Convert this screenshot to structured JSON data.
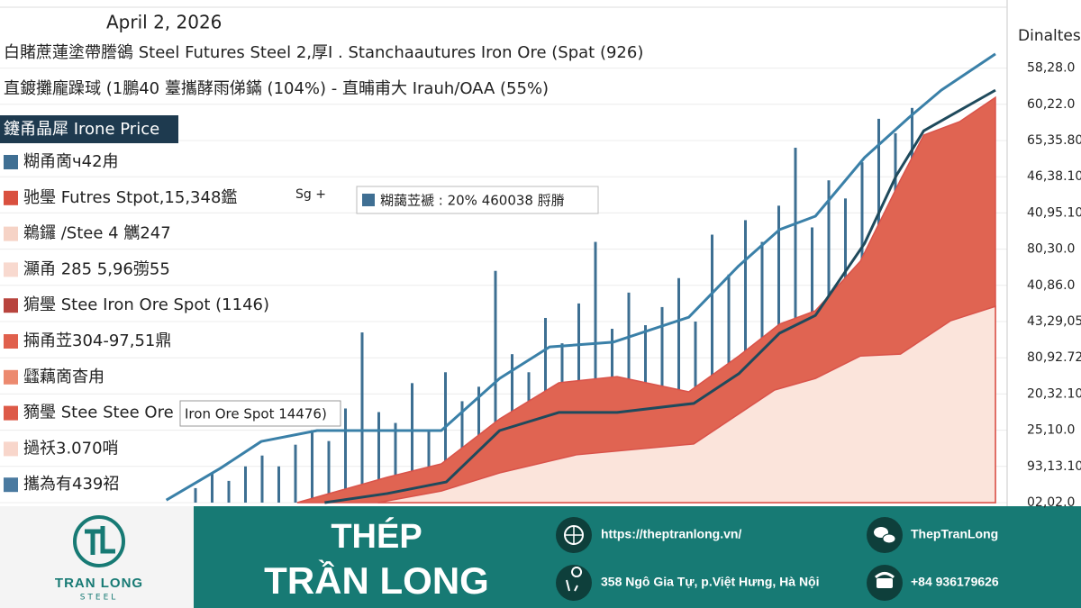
{
  "chart_data": {
    "type": "line",
    "date": "April 2, 2026",
    "title": "白賭蔗蓮塗帶謄鵒  Steel Futures Steel 2,厚I . Stanchaautures Iron Ore (Spat (926)",
    "subtitle": "直鍍攤龐躁琙 (1鵬40 薹攜酵雨俤鏋 (104%) - 直晡甫大 Irauh/OAA (55%)",
    "legend_title": "鑳甬晶犀 Irone Price",
    "legend_items": [
      {
        "label": "糊甬啇ч42甪",
        "color": "#3f6f93"
      },
      {
        "label": "驰璺 Futres Stpot,15,348鑑",
        "color": "#d9503f"
      },
      {
        "label": "鵜鑼 /Stee 4 觽247",
        "color": "#f6d3c6"
      },
      {
        "label": "灦甬 285 5,96彅55",
        "color": "#f8d9cf"
      },
      {
        "label": "猏璺 Stee Iron Ore Spot (1146)",
        "color": "#b8443e"
      },
      {
        "label": "掚甬苙304-97,51鼎",
        "color": "#e0604d"
      },
      {
        "label": "瓥藕啇杳甪",
        "color": "#ec8a6f"
      },
      {
        "label": "豴璺 Stee Stee Ore",
        "color": "#dd5a48"
      },
      {
        "label": "撾祅3.070哨",
        "color": "#f8d6cb"
      },
      {
        "label": "攜為有439祒",
        "color": "#4a7aa0"
      }
    ],
    "annotations": [
      "Sg +",
      "糊藹苙褫 : 20% 460038 脟膌",
      "Iron Ore Spot 14476)"
    ],
    "y_axis_label": "Dinaltes",
    "xlim": [
      0,
      100
    ],
    "ylim": [
      0,
      13
    ],
    "yticks": [
      {
        "value": 12,
        "label": "58,28.0"
      },
      {
        "value": 11,
        "label": "60,22.0"
      },
      {
        "value": 10,
        "label": "65,35.80"
      },
      {
        "value": 9,
        "label": "46,38.10"
      },
      {
        "value": 8,
        "label": "40,95.10"
      },
      {
        "value": 7,
        "label": "80,30.0"
      },
      {
        "value": 6,
        "label": "40,86.0"
      },
      {
        "value": 5,
        "label": "43,29,05"
      },
      {
        "value": 4,
        "label": "80,92.72"
      },
      {
        "value": 3,
        "label": "20,32.10"
      },
      {
        "value": 2,
        "label": "25,10.0"
      },
      {
        "value": 1,
        "label": "93,13.10"
      },
      {
        "value": 0,
        "label": "02,02.0"
      }
    ],
    "grid": true,
    "series": [
      {
        "kind": "bar",
        "color": "#3d6f92",
        "x": [
          4,
          6,
          8,
          10,
          12,
          14,
          16,
          18,
          20,
          22,
          24,
          26,
          28,
          30,
          32,
          34,
          36,
          38,
          40,
          42,
          44,
          46,
          48,
          50,
          52,
          54,
          56,
          58,
          60,
          62,
          64,
          66,
          68,
          70,
          72,
          74,
          76,
          78,
          80,
          82,
          84,
          86,
          88,
          90
        ],
        "values": [
          0.4,
          0.8,
          0.6,
          1.0,
          1.3,
          1.0,
          1.6,
          2.0,
          1.7,
          2.6,
          4.7,
          2.5,
          2.2,
          3.3,
          2.0,
          3.6,
          2.8,
          3.2,
          6.4,
          4.1,
          3.6,
          5.1,
          4.4,
          5.5,
          7.2,
          4.8,
          5.8,
          4.9,
          5.4,
          6.2,
          5.0,
          7.4,
          6.3,
          7.8,
          7.2,
          8.2,
          9.8,
          7.6,
          8.9,
          8.4,
          9.4,
          10.6,
          10.2,
          10.9
        ]
      },
      {
        "kind": "area",
        "color": "#e06452",
        "x": [
          16.2,
          27.0,
          33.5,
          40.5,
          47.6,
          54.6,
          63.2,
          69.2,
          74.1,
          78.4,
          83.8,
          88.6,
          91.4,
          95.7,
          100
        ],
        "values": [
          0,
          0.7,
          1.07,
          2.31,
          3.31,
          3.48,
          3.06,
          4.05,
          4.93,
          5.3,
          6.67,
          8.91,
          10.15,
          10.52,
          11.19
        ]
      },
      {
        "kind": "area",
        "color": "#fbe4db",
        "x": [
          25.9,
          33.5,
          40.5,
          49.7,
          63.8,
          73.5,
          78.4,
          83.8,
          88.6,
          94.6,
          100
        ],
        "values": [
          0,
          0.32,
          0.82,
          1.32,
          1.62,
          3.11,
          3.43,
          4.05,
          4.1,
          5.02,
          5.42
        ]
      },
      {
        "kind": "line",
        "color": "#3a80a8",
        "x": [
          0.5,
          7.0,
          11.9,
          18.6,
          33.5,
          40.5,
          46.5,
          54.1,
          63.2,
          69.2,
          74.1,
          78.4,
          84.3,
          89.7,
          93.5,
          100
        ],
        "values": [
          0.07,
          0.95,
          1.69,
          1.99,
          1.99,
          3.43,
          4.3,
          4.43,
          5.12,
          6.54,
          7.54,
          7.91,
          9.53,
          10.65,
          11.39,
          12.39
        ]
      },
      {
        "kind": "line",
        "color": "#1f4a5c",
        "x": [
          19.5,
          27.0,
          34.1,
          40.5,
          47.6,
          54.6,
          63.8,
          69.2,
          74.1,
          78.4,
          84.3,
          88.1,
          91.4,
          100
        ],
        "values": [
          0,
          0.25,
          0.57,
          1.99,
          2.49,
          2.49,
          2.74,
          3.56,
          4.68,
          5.17,
          7.16,
          9.03,
          10.27,
          11.39
        ]
      }
    ]
  },
  "footer": {
    "brand": "TRAN LONG",
    "brand_sub": "STEEL",
    "name_line1": "THÉP",
    "name_line2": "TRẦN LONG",
    "website": "https://theptranlong.vn/",
    "address": "358 Ngô Gia Tự, p.Việt Hưng, Hà Nội",
    "wechat": "ThepTranLong",
    "phone": "+84 936179626"
  }
}
